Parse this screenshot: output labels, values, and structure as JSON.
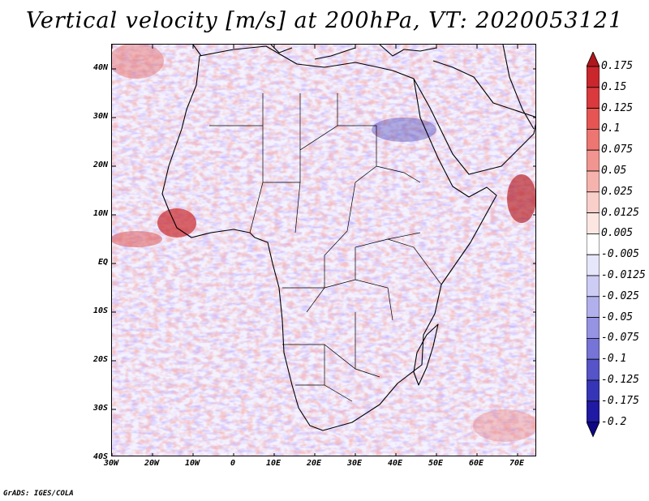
{
  "title": "Vertical velocity [m/s] at 200hPa, VT: 2020053121",
  "map": {
    "region": "Africa",
    "field": "Vertical velocity",
    "units": "m/s",
    "level": "200hPa",
    "valid_time": "2020053121"
  },
  "latitude_labels": [
    "40N",
    "30N",
    "20N",
    "10N",
    "EQ",
    "10S",
    "20S",
    "30S",
    "40S"
  ],
  "longitude_labels": [
    "30W",
    "20W",
    "10W",
    "0",
    "10E",
    "20E",
    "30E",
    "40E",
    "50E",
    "60E",
    "70E"
  ],
  "colorbar": {
    "labels": [
      "0.175",
      "0.15",
      "0.125",
      "0.1",
      "0.075",
      "0.05",
      "0.025",
      "0.0125",
      "0.005",
      "-0.005",
      "-0.0125",
      "-0.025",
      "-0.05",
      "-0.075",
      "-0.1",
      "-0.125",
      "-0.175",
      "-0.2"
    ],
    "colors": [
      "#b0171c",
      "#c9272c",
      "#da3a3d",
      "#e65553",
      "#ee7672",
      "#f29591",
      "#f6b3ae",
      "#f9cfca",
      "#fbe6e2",
      "#ffffff",
      "#e7e7fb",
      "#cdccf4",
      "#b2b0ec",
      "#9593e2",
      "#7674d6",
      "#5654c8",
      "#3735b7",
      "#2019a3",
      "#0f0783"
    ]
  },
  "credit": "GrADS: IGES/COLA"
}
